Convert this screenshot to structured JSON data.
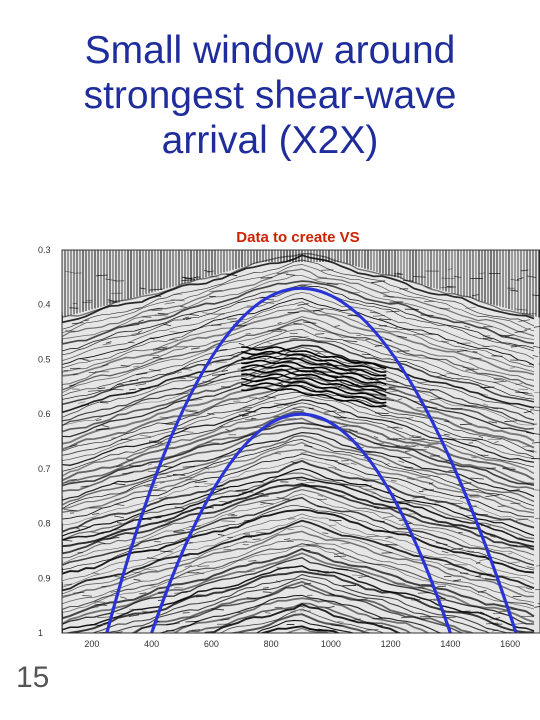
{
  "slide": {
    "title_lines": [
      "Small window around",
      "strongest shear-wave",
      "arrival (X2X)"
    ],
    "page_number": "15"
  },
  "figure": {
    "title": "Data to create VS",
    "title_color": "#cc2200",
    "curve_color": "#2a33d6",
    "y_ticks": [
      "0.3",
      "0.4",
      "0.5",
      "0.6",
      "0.7",
      "0.8",
      "0.9",
      "1"
    ],
    "x_ticks": [
      "200",
      "400",
      "600",
      "800",
      "1000",
      "1200",
      "1400",
      "1600"
    ],
    "xlim": [
      100,
      1700
    ],
    "ylim": [
      0.3,
      1.0
    ],
    "window_top": {
      "x": [
        250,
        900,
        1620
      ],
      "t": [
        1.0,
        0.37,
        1.0
      ]
    },
    "window_bottom": {
      "x": [
        400,
        900,
        1400
      ],
      "t": [
        1.0,
        0.6,
        1.0
      ]
    }
  }
}
